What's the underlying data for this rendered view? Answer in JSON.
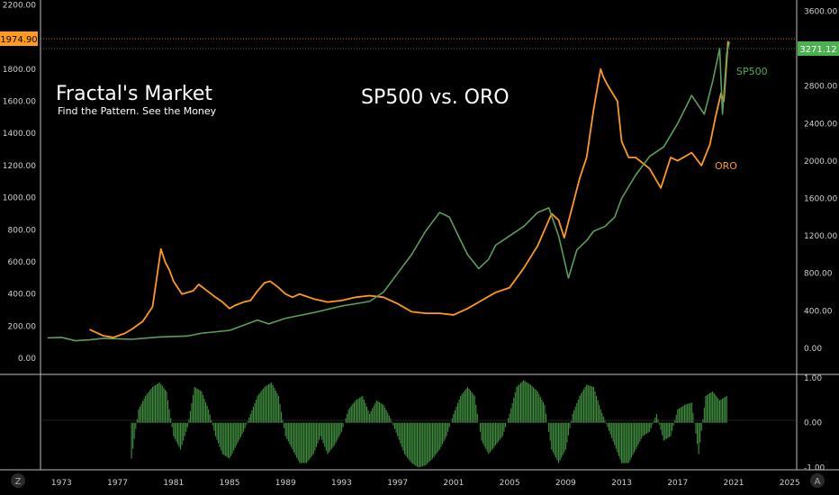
{
  "chart_data": {
    "type": "line",
    "title": "SP500 vs. ORO",
    "brand": {
      "name": "Fractal's Market",
      "tagline": "Find the Pattern.  See the Money"
    },
    "x_ticks": [
      "1973",
      "1977",
      "1981",
      "1985",
      "1989",
      "1993",
      "1997",
      "2001",
      "2005",
      "2009",
      "2013",
      "2017",
      "2021",
      "2025"
    ],
    "x_range": [
      1971.5,
      2025.5
    ],
    "left_axis": {
      "ticks": [
        "0.00",
        "200.00",
        "400.00",
        "600.00",
        "800.00",
        "1000.00",
        "1200.00",
        "1400.00",
        "1600.00",
        "1800.00",
        "2000.00",
        "2200.00"
      ],
      "range": [
        -100,
        2230
      ]
    },
    "right_axis": {
      "ticks": [
        "0.00",
        "400.00",
        "800.00",
        "1200.00",
        "1600.00",
        "2000.00",
        "2400.00",
        "2800.00",
        "3200.00",
        "3600.00"
      ],
      "range": [
        -280,
        3720
      ]
    },
    "oscillator_axis": {
      "ticks": [
        "1.00",
        "0.00",
        "-1.00"
      ],
      "range": [
        -1.05,
        1.08
      ]
    },
    "last_values": {
      "oro": "1974.90",
      "sp500": "3271.12"
    },
    "series": [
      {
        "name": "ORO",
        "axis": "left",
        "color": "#ff9a1a",
        "x": [
          1975,
          1976,
          1976.7,
          1977.5,
          1978,
          1978.8,
          1979.5,
          1980.1,
          1980.4,
          1980.7,
          1981,
          1981.6,
          1982.4,
          1982.8,
          1983.4,
          1984,
          1984.5,
          1985,
          1985.4,
          1986,
          1986.5,
          1987,
          1987.5,
          1987.9,
          1988.5,
          1989,
          1989.5,
          1990,
          1991,
          1992,
          1993,
          1994,
          1995,
          1996,
          1997,
          1998,
          1999,
          2000,
          2001,
          2002,
          2003,
          2004,
          2005,
          2006,
          2007,
          2008,
          2008.5,
          2008.9,
          2009.5,
          2010,
          2010.5,
          2011,
          2011.5,
          2011.7,
          2012,
          2012.7,
          2013,
          2013.5,
          2014,
          2015,
          2015.8,
          2016.5,
          2017,
          2018,
          2018.7,
          2019.3,
          2019.7,
          2020.1,
          2020.3,
          2020.6
        ],
        "values": [
          180,
          140,
          130,
          155,
          180,
          230,
          320,
          680,
          600,
          550,
          480,
          400,
          420,
          460,
          420,
          380,
          350,
          310,
          330,
          350,
          360,
          420,
          470,
          480,
          440,
          400,
          380,
          400,
          370,
          350,
          360,
          380,
          390,
          380,
          340,
          290,
          280,
          280,
          270,
          310,
          360,
          410,
          440,
          560,
          700,
          900,
          860,
          750,
          950,
          1120,
          1250,
          1550,
          1800,
          1750,
          1700,
          1600,
          1350,
          1250,
          1250,
          1180,
          1060,
          1250,
          1230,
          1280,
          1200,
          1330,
          1500,
          1650,
          1600,
          1975
        ]
      },
      {
        "name": "SP500",
        "axis": "right",
        "color": "#5aa05a",
        "x": [
          1972,
          1973,
          1974,
          1975,
          1976,
          1977,
          1978,
          1980,
          1982,
          1983,
          1985,
          1987,
          1987.8,
          1989,
          1991,
          1993,
          1995,
          1996,
          1997,
          1998,
          1999,
          2000,
          2000.7,
          2001.5,
          2002,
          2002.8,
          2003.5,
          2004,
          2005,
          2006,
          2007,
          2007.8,
          2008.5,
          2009.2,
          2009.8,
          2010.5,
          2011,
          2011.8,
          2012.5,
          2013,
          2014,
          2015,
          2016,
          2017,
          2018,
          2018.9,
          2019.5,
          2020,
          2020.2,
          2020.5,
          2020.7
        ],
        "values": [
          110,
          115,
          80,
          90,
          105,
          100,
          95,
          120,
          130,
          160,
          190,
          300,
          260,
          320,
          380,
          450,
          500,
          600,
          800,
          1000,
          1250,
          1450,
          1400,
          1150,
          1000,
          850,
          950,
          1100,
          1200,
          1300,
          1450,
          1500,
          1200,
          750,
          1050,
          1150,
          1250,
          1300,
          1400,
          1600,
          1850,
          2050,
          2150,
          2400,
          2700,
          2500,
          2850,
          3200,
          2500,
          3150,
          3271
        ]
      }
    ],
    "oscillator": {
      "axis": "oscillator",
      "x": [
        1978,
        1978.5,
        1979,
        1979.5,
        1980,
        1980.5,
        1981,
        1981.5,
        1982,
        1982.5,
        1983,
        1983.5,
        1984,
        1984.5,
        1985,
        1985.5,
        1986,
        1986.5,
        1987,
        1987.5,
        1988,
        1988.5,
        1989,
        1989.5,
        1990,
        1990.5,
        1991,
        1991.5,
        1992,
        1992.5,
        1993,
        1993.5,
        1994,
        1994.5,
        1995,
        1995.5,
        1996,
        1996.5,
        1997,
        1997.5,
        1998,
        1998.5,
        1999,
        1999.5,
        2000,
        2000.5,
        2001,
        2001.5,
        2002,
        2002.5,
        2003,
        2003.5,
        2004,
        2004.5,
        2005,
        2005.5,
        2006,
        2006.5,
        2007,
        2007.5,
        2008,
        2008.5,
        2009,
        2009.5,
        2010,
        2010.5,
        2011,
        2011.5,
        2012,
        2012.5,
        2013,
        2013.5,
        2014,
        2014.5,
        2015,
        2015.5,
        2016,
        2016.5,
        2017,
        2017.5,
        2018,
        2018.5,
        2019,
        2019.5,
        2020,
        2020.5
      ],
      "values": [
        -0.8,
        0.3,
        0.6,
        0.8,
        0.9,
        0.7,
        -0.3,
        -0.6,
        -0.1,
        0.8,
        0.7,
        0.3,
        -0.3,
        -0.7,
        -0.8,
        -0.5,
        -0.2,
        0.2,
        0.6,
        0.8,
        0.9,
        0.6,
        -0.3,
        -0.6,
        -0.9,
        -0.9,
        -0.7,
        -0.3,
        -0.7,
        -0.5,
        -0.2,
        0.3,
        0.5,
        0.6,
        0.2,
        0.5,
        0.4,
        0.1,
        -0.3,
        -0.7,
        -0.9,
        -1.0,
        -0.95,
        -0.8,
        -0.6,
        -0.3,
        0.2,
        0.6,
        0.8,
        0.6,
        -0.4,
        -0.7,
        -0.5,
        -0.3,
        0.2,
        0.8,
        0.95,
        0.85,
        0.7,
        0.4,
        -0.6,
        -0.9,
        -0.6,
        0.2,
        0.6,
        0.85,
        0.8,
        0.3,
        -0.1,
        -0.5,
        -0.9,
        -0.9,
        -0.6,
        -0.3,
        -0.2,
        0.2,
        -0.4,
        -0.3,
        0.3,
        0.4,
        0.45,
        -0.7,
        0.6,
        0.7,
        0.5,
        0.6
      ]
    }
  },
  "ui": {
    "left_badge": "Z",
    "right_badge": "A"
  }
}
